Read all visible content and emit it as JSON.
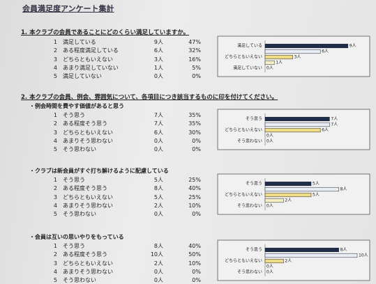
{
  "title": "会員満足度アンケート集計",
  "sections": [
    {
      "heading": "1. 本クラブの会員であることにどのくらい満足していますか。",
      "questions": [
        {
          "rows": [
            {
              "no": "1",
              "label": "満足している",
              "count": "9人",
              "pct": "47%"
            },
            {
              "no": "2",
              "label": "ある程度満足している",
              "count": "6人",
              "pct": "32%"
            },
            {
              "no": "3",
              "label": "どちらともいえない",
              "count": "3人",
              "pct": "16%"
            },
            {
              "no": "4",
              "label": "あまり満足していない",
              "count": "1人",
              "pct": "5%"
            },
            {
              "no": "5",
              "label": "満足していない",
              "count": "0人",
              "pct": "0%"
            }
          ],
          "chart": {
            "type": "bar",
            "categories": [
              "満足している",
              null,
              "どちらともいえない",
              null,
              "満足していない"
            ],
            "values": [
              9,
              6,
              3,
              1,
              0
            ],
            "xlim": [
              0,
              10
            ],
            "colors": [
              "#1e2d4a",
              "#e9eef6",
              "#efdc86",
              "#f6efc4",
              "#dddddd"
            ]
          }
        }
      ]
    },
    {
      "heading": "2. 本クラブの会員、例会、雰囲気について、各項目につき該当するものに印を付けてください。",
      "questions": [
        {
          "subtitle": "・例会時間を費やす価値があると思う",
          "rows": [
            {
              "no": "1",
              "label": "そう思う",
              "count": "7人",
              "pct": "35%"
            },
            {
              "no": "2",
              "label": "ある程度そう思う",
              "count": "7人",
              "pct": "35%"
            },
            {
              "no": "3",
              "label": "どちらともいえない",
              "count": "6人",
              "pct": "30%"
            },
            {
              "no": "4",
              "label": "あまりそう思わない",
              "count": "0人",
              "pct": "0%"
            },
            {
              "no": "5",
              "label": "そう思わない",
              "count": "0人",
              "pct": "0%"
            }
          ],
          "chart": {
            "type": "bar",
            "categories": [
              "そう思う",
              null,
              "どちらともいえない",
              null,
              "そう思わない"
            ],
            "values": [
              7,
              7,
              6,
              0,
              0
            ],
            "xlim": [
              0,
              10
            ],
            "colors": [
              "#1e2d4a",
              "#e9eef6",
              "#efdc86",
              "#f6efc4",
              "#dddddd"
            ]
          }
        },
        {
          "subtitle": "・クラブは新会員がすぐ打ち解けるように配慮している",
          "rows": [
            {
              "no": "1",
              "label": "そう思う",
              "count": "5人",
              "pct": "25%"
            },
            {
              "no": "2",
              "label": "ある程度そう思う",
              "count": "8人",
              "pct": "40%"
            },
            {
              "no": "3",
              "label": "どちらともいえない",
              "count": "5人",
              "pct": "25%"
            },
            {
              "no": "4",
              "label": "あまりそう思わない",
              "count": "2人",
              "pct": "10%"
            },
            {
              "no": "5",
              "label": "そう思わない",
              "count": "0人",
              "pct": "0%"
            }
          ],
          "chart": {
            "type": "bar",
            "categories": [
              "そう思う",
              null,
              "どちらともいえない",
              null,
              "そう思わない"
            ],
            "values": [
              5,
              8,
              5,
              2,
              0
            ],
            "xlim": [
              0,
              10
            ],
            "colors": [
              "#1e2d4a",
              "#e9eef6",
              "#efdc86",
              "#f6efc4",
              "#dddddd"
            ]
          }
        },
        {
          "subtitle": "・会員は互いの思いやりをもっている",
          "rows": [
            {
              "no": "1",
              "label": "そう思う",
              "count": "8人",
              "pct": "40%"
            },
            {
              "no": "2",
              "label": "ある程度そう思う",
              "count": "10人",
              "pct": "50%"
            },
            {
              "no": "3",
              "label": "どちらともいえない",
              "count": "2人",
              "pct": "10%"
            },
            {
              "no": "4",
              "label": "あまりそう思わない",
              "count": "0人",
              "pct": "0%"
            },
            {
              "no": "5",
              "label": "そう思わない",
              "count": "0人",
              "pct": "0%"
            }
          ],
          "chart": {
            "type": "bar",
            "categories": [
              "そう思う",
              null,
              "どちらともいえない",
              null,
              "そう思わない"
            ],
            "values": [
              8,
              10,
              2,
              0,
              0
            ],
            "xlim": [
              0,
              10
            ],
            "colors": [
              "#1e2d4a",
              "#e9eef6",
              "#efdc86",
              "#f6efc4",
              "#dddddd"
            ]
          }
        }
      ]
    }
  ]
}
